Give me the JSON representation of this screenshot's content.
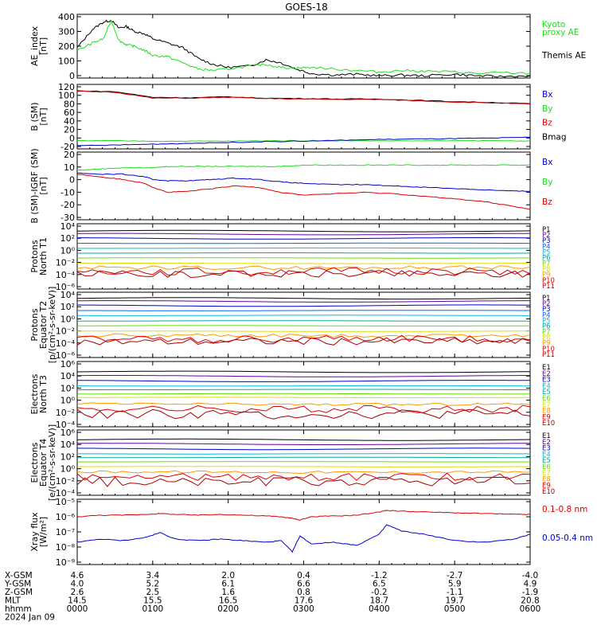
{
  "title": "GOES-18",
  "colors": {
    "black": "#000000",
    "green": "#22dd22",
    "blue": "#0000cc",
    "red": "#dd0000",
    "navy": "#000080",
    "purple": "#660099",
    "cyan": "#00bbdd",
    "teal": "#00aa99",
    "lime": "#66dd00",
    "yellow": "#dddd00",
    "orange": "#ff9900",
    "darkred": "#aa0000"
  },
  "footer": {
    "labels": [
      "X-GSM",
      "Y-GSM",
      "Z-GSM",
      "MLT",
      "hhmm",
      "2024 Jan 09"
    ],
    "columns": [
      {
        "values": [
          "4.6",
          "4.0",
          "2.6",
          "14.5",
          "0000"
        ]
      },
      {
        "values": [
          "3.4",
          "5.2",
          "2.5",
          "15.5",
          "0100"
        ]
      },
      {
        "values": [
          "2.0",
          "6.1",
          "1.6",
          "16.5",
          "0200"
        ]
      },
      {
        "values": [
          "0.4",
          "6.6",
          "0.8",
          "17.6",
          "0300"
        ]
      },
      {
        "values": [
          "-1.2",
          "6.5",
          "-0.2",
          "18.7",
          "0400"
        ]
      },
      {
        "values": [
          "-2.7",
          "5.9",
          "-1.1",
          "19.7",
          "0500"
        ]
      },
      {
        "values": [
          "-4.0",
          "4.9",
          "-1.9",
          "20.8",
          "0600"
        ]
      }
    ]
  },
  "chart_data": [
    {
      "type": "line",
      "ylabel": [
        "AE_index",
        "[nT]"
      ],
      "yticks": [
        "400",
        "300",
        "200",
        "100",
        "0"
      ],
      "ylim": [
        0,
        420
      ],
      "legend": [
        {
          "text": [
            "Kyoto",
            "proxy AE"
          ],
          "color": "#22dd22"
        },
        {
          "text": [
            "Themis AE"
          ],
          "color": "#000000"
        }
      ],
      "x_hours": [
        0,
        0.2,
        0.35,
        0.45,
        0.55,
        0.65,
        0.75,
        0.9,
        1.0,
        1.2,
        1.4,
        1.6,
        1.8,
        2.0,
        2.3,
        2.5,
        2.7,
        2.9,
        3.1,
        3.4,
        3.7,
        4.0,
        4.3,
        4.6,
        5.0,
        5.3,
        5.6,
        6.0
      ],
      "series": [
        {
          "name": "Themis AE",
          "color": "#000000",
          "values": [
            200,
            320,
            370,
            380,
            330,
            340,
            310,
            290,
            260,
            230,
            200,
            130,
            90,
            70,
            80,
            120,
            100,
            60,
            30,
            20,
            25,
            15,
            20,
            15,
            25,
            15,
            10,
            15
          ]
        },
        {
          "name": "Kyoto proxy AE",
          "color": "#22dd22",
          "values": [
            180,
            230,
            260,
            380,
            250,
            220,
            210,
            180,
            150,
            140,
            100,
            60,
            50,
            60,
            80,
            90,
            70,
            65,
            70,
            60,
            50,
            40,
            50,
            45,
            40,
            30,
            35,
            30
          ]
        }
      ]
    },
    {
      "type": "line",
      "ylabel": [
        "B (SM)",
        "[nT]"
      ],
      "yticks": [
        "120",
        "100",
        "80",
        "60",
        "40",
        "20",
        "0",
        "-20"
      ],
      "ylim": [
        -25,
        125
      ],
      "legend": [
        {
          "text": [
            "Bx"
          ],
          "color": "#0000cc"
        },
        {
          "text": [
            "By"
          ],
          "color": "#22dd22"
        },
        {
          "text": [
            "Bz"
          ],
          "color": "#dd0000"
        },
        {
          "text": [
            "Bmag"
          ],
          "color": "#000000"
        }
      ],
      "x_hours": [
        0,
        0.5,
        1.0,
        1.5,
        2.0,
        2.5,
        3.0,
        3.5,
        4.0,
        4.5,
        5.0,
        5.5,
        6.0
      ],
      "series": [
        {
          "name": "Bmag",
          "color": "#000000",
          "values": [
            110,
            108,
            95,
            94,
            96,
            93,
            92,
            91,
            91,
            88,
            85,
            83,
            80
          ]
        },
        {
          "name": "Bz",
          "color": "#dd0000",
          "values": [
            109,
            107,
            93,
            93,
            95,
            92,
            91,
            90,
            90,
            87,
            84,
            82,
            79
          ]
        },
        {
          "name": "By",
          "color": "#22dd22",
          "values": [
            -6,
            -6,
            -7,
            -7,
            -7,
            -6,
            -6,
            -6,
            -6,
            -6,
            -6,
            -6,
            -6
          ]
        },
        {
          "name": "Bx",
          "color": "#0000cc",
          "values": [
            -18,
            -16,
            -14,
            -12,
            -10,
            -8,
            -7,
            -5,
            -3,
            -2,
            -1,
            0,
            2
          ]
        }
      ]
    },
    {
      "type": "line",
      "ylabel": [
        "B (SM)-IGRF (SM)",
        "[nT]"
      ],
      "yticks": [
        "20",
        "10",
        "0",
        "-10",
        "-20",
        "-30"
      ],
      "ylim": [
        -32,
        20
      ],
      "legend": [
        {
          "text": [
            "Bx"
          ],
          "color": "#0000cc"
        },
        {
          "text": [
            "By"
          ],
          "color": "#22dd22"
        },
        {
          "text": [
            "Bz"
          ],
          "color": "#dd0000"
        }
      ],
      "x_hours": [
        0,
        0.3,
        0.6,
        0.9,
        1.0,
        1.2,
        1.5,
        1.8,
        2.1,
        2.4,
        2.7,
        3.0,
        3.4,
        3.8,
        4.2,
        4.6,
        5.0,
        5.4,
        5.8,
        6.0
      ],
      "series": [
        {
          "name": "By",
          "color": "#22dd22",
          "values": [
            6,
            7,
            8,
            8,
            8,
            9,
            9,
            9,
            9,
            9,
            9,
            10,
            10,
            10,
            10,
            10,
            10,
            10,
            10,
            10
          ]
        },
        {
          "name": "Bx",
          "color": "#0000cc",
          "values": [
            4,
            3,
            3,
            1,
            -1,
            -2,
            -2,
            -1,
            0,
            -1,
            -3,
            -4,
            -5,
            -5,
            -6,
            -7,
            -8,
            -9,
            -10,
            -10
          ]
        },
        {
          "name": "Bz",
          "color": "#dd0000",
          "values": [
            3,
            1,
            -1,
            -4,
            -7,
            -11,
            -10,
            -8,
            -6,
            -7,
            -11,
            -13,
            -12,
            -11,
            -12,
            -14,
            -16,
            -18,
            -22,
            -24
          ]
        }
      ]
    },
    {
      "type": "line",
      "ylabel": [
        "Protons",
        "North T1"
      ],
      "yticks": [
        "10⁴",
        "10²",
        "10⁰",
        "10⁻²",
        "10⁻⁴",
        "10⁻⁶"
      ],
      "ylim_log": [
        -6.5,
        4.2
      ],
      "legend": [
        {
          "text": [
            "P1"
          ],
          "color": "#000000"
        },
        {
          "text": [
            "P2"
          ],
          "color": "#660099"
        },
        {
          "text": [
            "P3"
          ],
          "color": "#0000cc"
        },
        {
          "text": [
            "P4"
          ],
          "color": "#0066ff"
        },
        {
          "text": [
            "P5"
          ],
          "color": "#00bbdd"
        },
        {
          "text": [
            "P6"
          ],
          "color": "#00aa99"
        },
        {
          "text": [
            "P7"
          ],
          "color": "#66dd00"
        },
        {
          "text": [
            "P8"
          ],
          "color": "#dddd00"
        },
        {
          "text": [
            "P9"
          ],
          "color": "#ff9900"
        },
        {
          "text": [
            "P10"
          ],
          "color": "#dd0000"
        },
        {
          "text": [
            "P11"
          ],
          "color": "#aa0000"
        }
      ],
      "levels_log": [
        3.0,
        2.5,
        1.8,
        1.0,
        0.2,
        -0.6,
        -1.4,
        -2.3,
        -3.0,
        -3.6,
        -4.0
      ],
      "wiggle": [
        0,
        0,
        0,
        0,
        0,
        0,
        0,
        0,
        0.3,
        0.6,
        0.6
      ]
    },
    {
      "type": "line",
      "ylabel": [
        "Protons",
        "Equator T2",
        "[p/(cm²-s-sr-keV)]"
      ],
      "yticks": [
        "10⁴",
        "10²",
        "10⁰",
        "10⁻²",
        "10⁻⁴",
        "10⁻⁶"
      ],
      "ylim_log": [
        -6.5,
        4.2
      ],
      "legend": [
        {
          "text": [
            "P1"
          ],
          "color": "#000000"
        },
        {
          "text": [
            "P2"
          ],
          "color": "#660099"
        },
        {
          "text": [
            "P3"
          ],
          "color": "#0000cc"
        },
        {
          "text": [
            "P4"
          ],
          "color": "#0066ff"
        },
        {
          "text": [
            "P5"
          ],
          "color": "#00bbdd"
        },
        {
          "text": [
            "P6"
          ],
          "color": "#00aa99"
        },
        {
          "text": [
            "P7"
          ],
          "color": "#66dd00"
        },
        {
          "text": [
            "P8"
          ],
          "color": "#dddd00"
        },
        {
          "text": [
            "P9"
          ],
          "color": "#ff9900"
        },
        {
          "text": [
            "P10"
          ],
          "color": "#dd0000"
        },
        {
          "text": [
            "P11"
          ],
          "color": "#aa0000"
        }
      ],
      "levels_log": [
        3.2,
        2.7,
        2.0,
        1.2,
        0.4,
        -0.5,
        -1.3,
        -2.2,
        -2.9,
        -3.5,
        -3.9
      ],
      "wiggle": [
        0,
        0,
        0,
        0,
        0,
        0,
        0,
        0,
        0.3,
        0.6,
        0.6
      ]
    },
    {
      "type": "line",
      "ylabel": [
        "Electrons",
        "North T3"
      ],
      "yticks": [
        "10⁶",
        "10⁴",
        "10²",
        "10⁰",
        "10⁻²",
        "10⁻⁴"
      ],
      "ylim_log": [
        -4.5,
        6.2
      ],
      "legend": [
        {
          "text": [
            "E1"
          ],
          "color": "#000000"
        },
        {
          "text": [
            "E2"
          ],
          "color": "#660099"
        },
        {
          "text": [
            "E3"
          ],
          "color": "#0000cc"
        },
        {
          "text": [
            "E4"
          ],
          "color": "#00bbdd"
        },
        {
          "text": [
            "E5"
          ],
          "color": "#00aa99"
        },
        {
          "text": [
            "E6"
          ],
          "color": "#66dd00"
        },
        {
          "text": [
            "E7"
          ],
          "color": "#dddd00"
        },
        {
          "text": [
            "E8"
          ],
          "color": "#ff9900"
        },
        {
          "text": [
            "E9"
          ],
          "color": "#dd0000"
        },
        {
          "text": [
            "E10"
          ],
          "color": "#aa0000"
        }
      ],
      "levels_log": [
        4.5,
        3.8,
        3.0,
        2.2,
        1.6,
        0.9,
        0.3,
        -0.8,
        -1.6,
        -2.4
      ],
      "wiggle": [
        0,
        0,
        0,
        0,
        0,
        0,
        0,
        0.2,
        0.6,
        0.8
      ]
    },
    {
      "type": "line",
      "ylabel": [
        "Electrons",
        "Equator T4",
        "[e/(cm²-s-sr-keV)]"
      ],
      "yticks": [
        "10⁶",
        "10⁴",
        "10²",
        "10⁰",
        "10⁻²",
        "10⁻⁴"
      ],
      "ylim_log": [
        -4.5,
        6.2
      ],
      "legend": [
        {
          "text": [
            "E1"
          ],
          "color": "#000000"
        },
        {
          "text": [
            "E2"
          ],
          "color": "#660099"
        },
        {
          "text": [
            "E3"
          ],
          "color": "#0000cc"
        },
        {
          "text": [
            "E4"
          ],
          "color": "#00bbdd"
        },
        {
          "text": [
            "E5"
          ],
          "color": "#00aa99"
        },
        {
          "text": [
            "E6"
          ],
          "color": "#66dd00"
        },
        {
          "text": [
            "E7"
          ],
          "color": "#dddd00"
        },
        {
          "text": [
            "E8"
          ],
          "color": "#ff9900"
        },
        {
          "text": [
            "E9"
          ],
          "color": "#dd0000"
        },
        {
          "text": [
            "E10"
          ],
          "color": "#aa0000"
        }
      ],
      "levels_log": [
        4.6,
        3.9,
        3.1,
        2.3,
        1.7,
        1.0,
        0.2,
        -0.7,
        -1.5,
        -2.3
      ],
      "wiggle": [
        0,
        0,
        0,
        0,
        0,
        0,
        0,
        0.2,
        0.6,
        0.8
      ]
    },
    {
      "type": "line",
      "ylabel": [
        "Xray flux",
        "[W/m²]"
      ],
      "yticks": [
        "10⁻⁵",
        "10⁻⁶",
        "10⁻⁷",
        "10⁻⁸",
        "10⁻⁹"
      ],
      "ylim_log": [
        -9.1,
        -5.0
      ],
      "legend": [
        {
          "text": [
            "0.1-0.8 nm"
          ],
          "color": "#dd0000"
        },
        {
          "text": [
            "0.05-0.4 nm"
          ],
          "color": "#0000cc"
        }
      ],
      "x_hours": [
        0,
        0.3,
        0.6,
        0.9,
        1.1,
        1.3,
        1.6,
        1.9,
        2.2,
        2.5,
        2.7,
        2.85,
        2.95,
        3.1,
        3.4,
        3.7,
        4.0,
        4.1,
        4.3,
        4.6,
        5.0,
        5.4,
        5.8,
        6.0
      ],
      "series": [
        {
          "name": "0.1-0.8 nm",
          "color": "#dd0000",
          "values": [
            -6.1,
            -6.0,
            -6.0,
            -5.95,
            -5.9,
            -5.95,
            -6.0,
            -5.95,
            -6.0,
            -6.05,
            -6.1,
            -6.2,
            -6.3,
            -6.1,
            -6.05,
            -6.0,
            -5.8,
            -5.7,
            -5.75,
            -5.8,
            -5.85,
            -5.9,
            -5.95,
            -5.95
          ]
        },
        {
          "name": "0.05-0.4 nm",
          "color": "#0000cc",
          "values": [
            -7.7,
            -7.5,
            -7.6,
            -7.4,
            -7.1,
            -7.5,
            -7.6,
            -7.5,
            -7.6,
            -7.7,
            -7.6,
            -8.3,
            -7.3,
            -7.8,
            -7.7,
            -7.9,
            -7.2,
            -6.6,
            -7.0,
            -7.2,
            -7.6,
            -7.7,
            -7.5,
            -7.2
          ]
        }
      ]
    }
  ]
}
